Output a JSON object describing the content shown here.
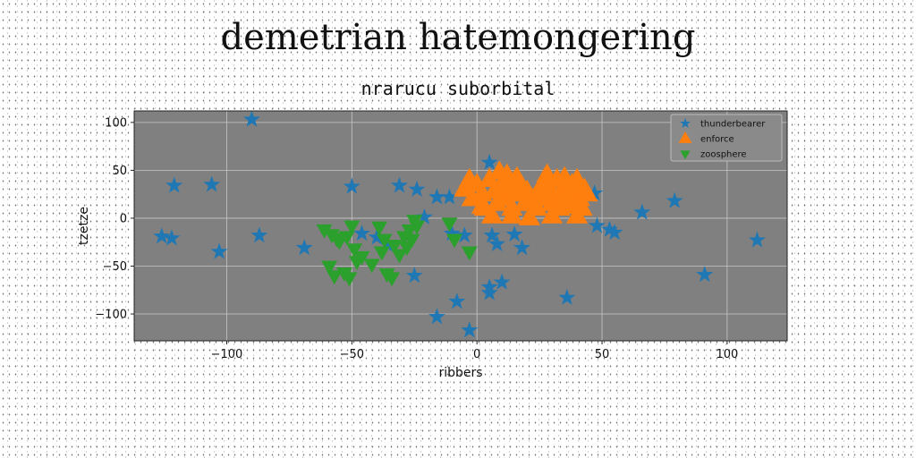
{
  "title": "demetrian hatemongering",
  "subtitle": "nrarucu suborbital",
  "chart_data": {
    "type": "scatter",
    "xlabel": "ribbers",
    "ylabel": "tzetze",
    "xlim": [
      -137,
      124
    ],
    "ylim": [
      -128,
      112
    ],
    "xticks": [
      -100,
      -50,
      0,
      50,
      100
    ],
    "yticks": [
      -100,
      -50,
      0,
      50,
      100
    ],
    "xtick_labels": [
      "−100",
      "−50",
      "0",
      "50",
      "100"
    ],
    "ytick_labels": [
      "−100",
      "−50",
      "0",
      "50",
      "100"
    ],
    "grid": true,
    "legend_position": "top-right",
    "series": [
      {
        "name": "thunderbearer",
        "marker": "star",
        "color": "#1f77b4",
        "points": [
          [
            -90,
            103
          ],
          [
            -121,
            34
          ],
          [
            -106,
            35
          ],
          [
            -126,
            -19
          ],
          [
            -122,
            -21
          ],
          [
            -103,
            -35
          ],
          [
            -87,
            -18
          ],
          [
            -69,
            -31
          ],
          [
            -50,
            33
          ],
          [
            -31,
            34
          ],
          [
            -24,
            30
          ],
          [
            -16,
            22
          ],
          [
            -11,
            22
          ],
          [
            -21,
            1
          ],
          [
            -46,
            -16
          ],
          [
            -40,
            -20
          ],
          [
            -36,
            -27
          ],
          [
            -25,
            -60
          ],
          [
            -16,
            -103
          ],
          [
            -8,
            -87
          ],
          [
            -3,
            -117
          ],
          [
            -5,
            -18
          ],
          [
            -10,
            -16
          ],
          [
            5,
            58
          ],
          [
            6,
            -18
          ],
          [
            8,
            -27
          ],
          [
            18,
            -31
          ],
          [
            15,
            -17
          ],
          [
            5,
            -72
          ],
          [
            10,
            -67
          ],
          [
            5,
            -78
          ],
          [
            36,
            -83
          ],
          [
            47,
            26
          ],
          [
            48,
            -8
          ],
          [
            53,
            -12
          ],
          [
            55,
            -15
          ],
          [
            66,
            6
          ],
          [
            79,
            18
          ],
          [
            91,
            -59
          ],
          [
            112,
            -23
          ]
        ]
      },
      {
        "name": "enforce",
        "marker": "triangle-up",
        "color": "#ff7f0e",
        "points": [
          [
            -5,
            30
          ],
          [
            -2,
            20
          ],
          [
            0,
            35
          ],
          [
            2,
            25
          ],
          [
            3,
            10
          ],
          [
            5,
            40
          ],
          [
            7,
            28
          ],
          [
            8,
            15
          ],
          [
            10,
            35
          ],
          [
            11,
            20
          ],
          [
            12,
            45
          ],
          [
            13,
            30
          ],
          [
            14,
            10
          ],
          [
            15,
            38
          ],
          [
            16,
            25
          ],
          [
            18,
            32
          ],
          [
            19,
            15
          ],
          [
            20,
            28
          ],
          [
            22,
            20
          ],
          [
            24,
            10
          ],
          [
            25,
            30
          ],
          [
            26,
            20
          ],
          [
            27,
            38
          ],
          [
            28,
            45
          ],
          [
            29,
            28
          ],
          [
            30,
            15
          ],
          [
            31,
            22
          ],
          [
            32,
            40
          ],
          [
            33,
            10
          ],
          [
            34,
            30
          ],
          [
            35,
            25
          ],
          [
            36,
            18
          ],
          [
            37,
            12
          ],
          [
            38,
            35
          ],
          [
            39,
            28
          ],
          [
            40,
            40
          ],
          [
            41,
            20
          ],
          [
            42,
            10
          ],
          [
            43,
            30
          ],
          [
            44,
            25
          ],
          [
            6,
            2
          ],
          [
            2,
            12
          ],
          [
            14,
            2
          ],
          [
            21,
            0
          ],
          [
            30,
            2
          ],
          [
            40,
            2
          ],
          [
            -3,
            40
          ],
          [
            9,
            48
          ],
          [
            16,
            42
          ],
          [
            35,
            42
          ]
        ]
      },
      {
        "name": "zoosphere",
        "marker": "triangle-down",
        "color": "#2ca02c",
        "points": [
          [
            -61,
            -12
          ],
          [
            -58,
            -17
          ],
          [
            -56,
            -21
          ],
          [
            -55,
            -24
          ],
          [
            -52,
            -19
          ],
          [
            -50,
            -8
          ],
          [
            -49,
            -32
          ],
          [
            -48,
            -45
          ],
          [
            -46,
            -40
          ],
          [
            -59,
            -50
          ],
          [
            -57,
            -60
          ],
          [
            -53,
            -57
          ],
          [
            -51,
            -62
          ],
          [
            -39,
            -9
          ],
          [
            -37,
            -22
          ],
          [
            -38,
            -35
          ],
          [
            -36,
            -58
          ],
          [
            -34,
            -62
          ],
          [
            -33,
            -28
          ],
          [
            -31,
            -38
          ],
          [
            -29,
            -19
          ],
          [
            -27,
            -12
          ],
          [
            -26,
            -22
          ],
          [
            -25,
            -2
          ],
          [
            -24,
            -8
          ],
          [
            -28,
            -30
          ],
          [
            -11,
            -5
          ],
          [
            -9,
            -22
          ],
          [
            -3,
            -35
          ],
          [
            -42,
            -48
          ]
        ]
      }
    ]
  }
}
